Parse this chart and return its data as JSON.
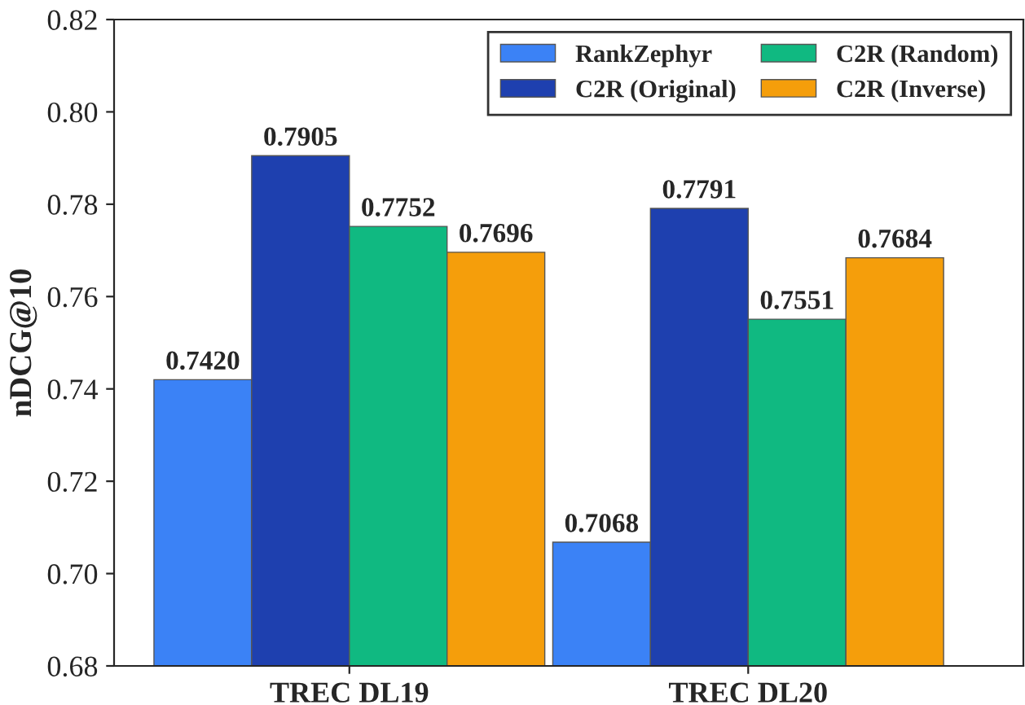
{
  "chart_data": {
    "type": "bar",
    "ylabel": "nDCG@10",
    "categories": [
      "TREC DL19",
      "TREC DL20"
    ],
    "series": [
      {
        "name": "RankZephyr",
        "color": "#3b82f6",
        "values": [
          0.742,
          0.7068
        ],
        "value_labels": [
          "0.7420",
          "0.7068"
        ]
      },
      {
        "name": "C2R (Original)",
        "color": "#1e40af",
        "values": [
          0.7905,
          0.7791
        ],
        "value_labels": [
          "0.7905",
          "0.7791"
        ]
      },
      {
        "name": "C2R (Random)",
        "color": "#10b981",
        "values": [
          0.7752,
          0.7551
        ],
        "value_labels": [
          "0.7752",
          "0.7551"
        ]
      },
      {
        "name": "C2R (Inverse)",
        "color": "#f59e0b",
        "values": [
          0.7696,
          0.7684
        ],
        "value_labels": [
          "0.7696",
          "0.7684"
        ]
      }
    ],
    "ylim": [
      0.68,
      0.82
    ],
    "yticks": [
      {
        "value": 0.68,
        "label": "0.68"
      },
      {
        "value": 0.7,
        "label": "0.70"
      },
      {
        "value": 0.72,
        "label": "0.72"
      },
      {
        "value": 0.74,
        "label": "0.74"
      },
      {
        "value": 0.76,
        "label": "0.76"
      },
      {
        "value": 0.78,
        "label": "0.78"
      },
      {
        "value": 0.8,
        "label": "0.80"
      },
      {
        "value": 0.82,
        "label": "0.82"
      }
    ],
    "legend": "top right",
    "grid": false
  }
}
